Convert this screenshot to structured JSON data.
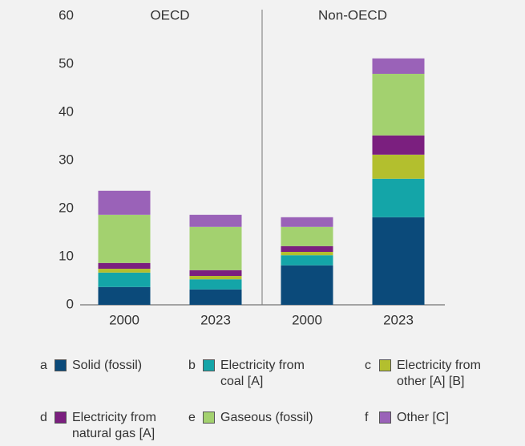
{
  "chart_data": {
    "type": "stacked_bar",
    "groups": [
      "OECD",
      "Non-OECD"
    ],
    "categories": [
      "2000",
      "2023",
      "2000",
      "2023"
    ],
    "series": [
      {
        "letter": "a",
        "name": "Solid (fossil)",
        "color": "#0b4a7a",
        "values": [
          3.7,
          3.2,
          8.2,
          18.2
        ]
      },
      {
        "letter": "b",
        "name": "Electricity from coal [A]",
        "color": "#14a5a8",
        "values": [
          3.0,
          2.1,
          2.1,
          8.0
        ]
      },
      {
        "letter": "c",
        "name": "Electricity from other [A] [B]",
        "color": "#b3bf2e",
        "values": [
          0.8,
          0.7,
          0.7,
          5.0
        ]
      },
      {
        "letter": "d",
        "name": "Electricity from natural gas [A]",
        "color": "#7b1f7f",
        "values": [
          1.2,
          1.2,
          1.2,
          4.0
        ]
      },
      {
        "letter": "e",
        "name": "Gaseous (fossil)",
        "color": "#a3d16f",
        "values": [
          10.0,
          9.0,
          4.0,
          12.8
        ]
      },
      {
        "letter": "f",
        "name": "Other [C]",
        "color": "#9a62b8",
        "values": [
          5.0,
          2.5,
          2.0,
          3.2
        ]
      }
    ],
    "ylim": [
      0,
      60
    ],
    "yticks": [
      0,
      10,
      20,
      30,
      40,
      50,
      60
    ],
    "grid": false
  }
}
